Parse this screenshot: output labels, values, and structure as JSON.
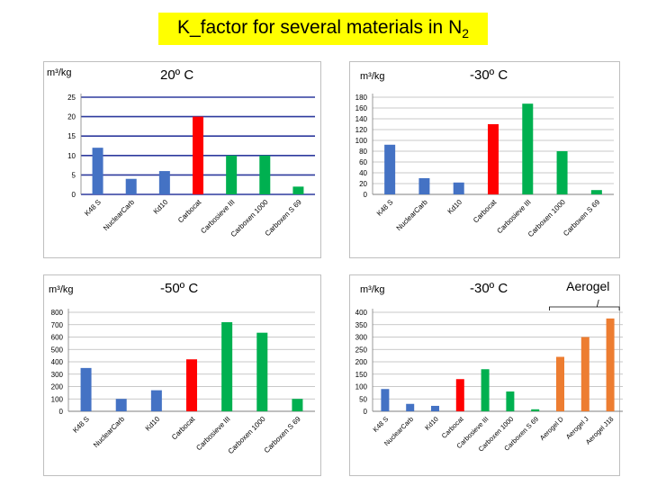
{
  "slide": {
    "title_main": "K_factor for several materials in N",
    "title_sub": "2"
  },
  "chart_data": [
    {
      "type": "bar",
      "unit_label": "m³/kg",
      "temperature_label": "20º  C",
      "categories": [
        "K48  S",
        "NuclearCarb",
        "Kd10",
        "Carbocat",
        "Carbosieve III",
        "Carboxen 1000",
        "Carboxen S 69"
      ],
      "values": [
        12,
        4,
        6,
        20,
        10,
        10,
        2
      ],
      "colors": [
        "#4472c4",
        "#4472c4",
        "#4472c4",
        "#ff0000",
        "#00b050",
        "#00b050",
        "#00b050"
      ],
      "y_ticks": [
        0,
        5,
        10,
        15,
        20,
        25
      ],
      "ylim": [
        0,
        25
      ]
    },
    {
      "type": "bar",
      "unit_label": "m³/kg",
      "temperature_label": "-30º  C",
      "categories": [
        "K48  S",
        "NuclearCarb",
        "Kd10",
        "Carbocat",
        "Carbosieve III",
        "Carboxen 1000",
        "Carboxen S 69"
      ],
      "values": [
        92,
        30,
        22,
        130,
        168,
        80,
        8
      ],
      "colors": [
        "#4472c4",
        "#4472c4",
        "#4472c4",
        "#ff0000",
        "#00b050",
        "#00b050",
        "#00b050"
      ],
      "y_ticks": [
        0,
        20,
        40,
        60,
        80,
        100,
        120,
        140,
        160,
        180
      ],
      "ylim": [
        0,
        180
      ]
    },
    {
      "type": "bar",
      "unit_label": "m³/kg",
      "temperature_label": "-50º  C",
      "categories": [
        "K48  S",
        "NuclearCarb",
        "Kd10",
        "Carbocat",
        "Carbosieve III",
        "Carboxen 1000",
        "Carboxen S 69"
      ],
      "values": [
        350,
        100,
        170,
        420,
        720,
        635,
        100
      ],
      "colors": [
        "#4472c4",
        "#4472c4",
        "#4472c4",
        "#ff0000",
        "#00b050",
        "#00b050",
        "#00b050"
      ],
      "y_ticks": [
        0,
        100,
        200,
        300,
        400,
        500,
        600,
        700,
        800
      ],
      "ylim": [
        0,
        800
      ]
    },
    {
      "type": "bar",
      "unit_label": "m³/kg",
      "temperature_label": "-30º  C",
      "annotation": "Aerogel",
      "categories": [
        "K48  S",
        "NuclearCarb",
        "Kd10",
        "Carbocat",
        "Carbosieve III",
        "Carboxen 1000",
        "Carboxen S 69",
        "Aerogel  D",
        "Aerogel  J",
        "Aerogel  J18"
      ],
      "values": [
        90,
        30,
        22,
        130,
        170,
        80,
        8,
        220,
        300,
        375
      ],
      "colors": [
        "#4472c4",
        "#4472c4",
        "#4472c4",
        "#ff0000",
        "#00b050",
        "#00b050",
        "#00b050",
        "#ed7d31",
        "#ed7d31",
        "#ed7d31"
      ],
      "y_ticks": [
        0,
        50,
        100,
        150,
        200,
        250,
        300,
        350,
        400
      ],
      "ylim": [
        0,
        400
      ]
    }
  ]
}
